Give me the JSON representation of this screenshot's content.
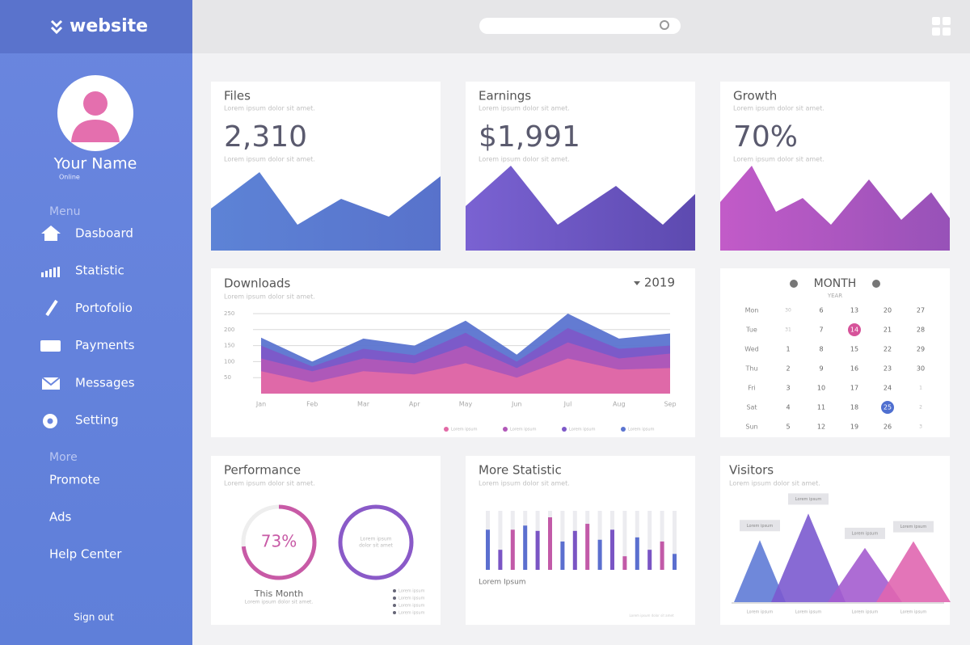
{
  "sidebar": {
    "logo": "website",
    "user_name": "Your Name",
    "status": "Online",
    "menu_title": "Menu",
    "menu": [
      "Dasboard",
      "Statistic",
      "Portofolio",
      "Payments",
      "Messages",
      "Setting"
    ],
    "more_title": "More",
    "more": [
      "Promote",
      "Ads",
      "Help Center"
    ],
    "sign_out": "Sign out"
  },
  "cards": [
    {
      "title": "Files",
      "subtitle": "Lorem ipsum dolor sit amet.",
      "value": "2,310",
      "caption": "Lorem ipsum dolor sit amet."
    },
    {
      "title": "Earnings",
      "subtitle": "Lorem ipsum dolor sit amet.",
      "value": "$1,991",
      "caption": "Lorem ipsum dolor sit amet."
    },
    {
      "title": "Growth",
      "subtitle": "Lorem ipsum dolor sit amet.",
      "value": "70%",
      "caption": "Lorem ipsum dolor sit amet."
    }
  ],
  "downloads": {
    "title": "Downloads",
    "subtitle": "Lorem ipsum dolor sit amet.",
    "year": "2019",
    "categories": [
      "Jan",
      "Feb",
      "Mar",
      "Apr",
      "May",
      "Jun",
      "Jul",
      "Aug",
      "Sep"
    ],
    "ylim": [
      0,
      250
    ],
    "yticks": [
      50,
      100,
      150,
      200,
      250
    ],
    "series": [
      {
        "name": "Lorem ipsum",
        "color": "#e26aa6",
        "values": [
          70,
          35,
          70,
          60,
          95,
          50,
          110,
          75,
          80
        ]
      },
      {
        "name": "Lorem ipsum",
        "color": "#b158b8",
        "values": [
          110,
          70,
          110,
          95,
          150,
          80,
          160,
          110,
          125
        ]
      },
      {
        "name": "Lorem ipsum",
        "color": "#7d58c8",
        "values": [
          150,
          85,
          140,
          120,
          190,
          100,
          205,
          140,
          150
        ]
      },
      {
        "name": "Lorem ipsum",
        "color": "#5b74d0",
        "values": [
          175,
          100,
          172,
          150,
          228,
          122,
          250,
          172,
          188
        ]
      }
    ]
  },
  "calendar": {
    "title": "MONTH",
    "subtitle": "YEAR",
    "weekdays": [
      "Mon",
      "Tue",
      "Wed",
      "Thu",
      "Fri",
      "Sat",
      "Sun"
    ],
    "weeks": [
      [
        30,
        31,
        1,
        2,
        3,
        4,
        5
      ],
      [
        6,
        7,
        8,
        9,
        10,
        11,
        12
      ],
      [
        13,
        14,
        15,
        16,
        17,
        18,
        19
      ],
      [
        20,
        21,
        22,
        23,
        24,
        25,
        26
      ],
      [
        27,
        28,
        29,
        30,
        1,
        2,
        3
      ]
    ],
    "marked": [
      {
        "week": 2,
        "day": 1,
        "color": "#d6539a"
      },
      {
        "week": 3,
        "day": 5,
        "color": "#4f6fd0"
      }
    ]
  },
  "performance": {
    "title": "Performance",
    "subtitle": "Lorem ipsum dolor sit amet.",
    "percent": 73,
    "percent_label": "73%",
    "period": "This Month",
    "caption": "Lorem ipsum dolor sit amet.",
    "ring_text": [
      "Lorem ipsum",
      "dolor sit amet"
    ],
    "legend": [
      "Lorem ipsum",
      "Lorem ipsum",
      "Lorem ipsum",
      "Lorem ipsum"
    ]
  },
  "statistic": {
    "title": "More Statistic",
    "subtitle": "Lorem ipsum dolor sit amet.",
    "values": [
      68,
      34,
      68,
      75,
      66,
      89,
      48,
      66,
      78,
      51,
      68,
      23,
      55,
      34,
      48,
      27
    ],
    "colors": [
      "#5b6fcf",
      "#7a55c4",
      "#c25aa8"
    ],
    "label": "Lorem Ipsum",
    "footnote": "Lorem ipsum dolor sit amet"
  },
  "visitors": {
    "title": "Visitors",
    "subtitle": "Lorem ipsum dolor sit amet.",
    "values": [
      56,
      80,
      49,
      55
    ],
    "colors": [
      "#5f7bd6",
      "#7b5acf",
      "#a45ccf",
      "#e066b0"
    ],
    "callouts": [
      "Lorem ipsum",
      "Lorem ipsum",
      "Lorem ipsum",
      "Lorem ipsum"
    ],
    "labels": [
      "Lorem ipsum",
      "Lorem ipsum",
      "Lorem ipsum",
      "Lorem ipsum"
    ]
  }
}
